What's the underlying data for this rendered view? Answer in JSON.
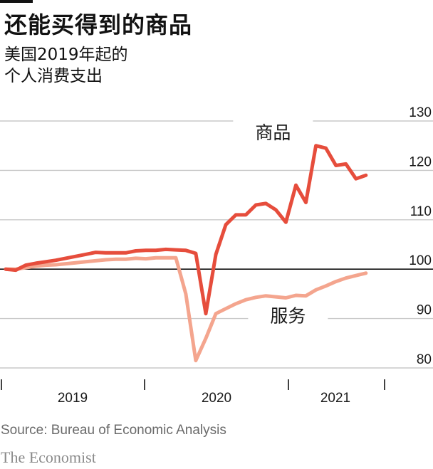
{
  "title": "还能买得到的商品",
  "subtitle_line1": "美国2019年起的",
  "subtitle_line2": "个人消费支出",
  "source": "Source: Bureau of Economic Analysis",
  "brand": "The Economist",
  "chart_data": {
    "type": "line",
    "ylim": [
      80,
      130
    ],
    "yticks": [
      130,
      120,
      110,
      100,
      90,
      80
    ],
    "baseline": 100,
    "x_start": "2019-01",
    "x_end": "2021-10",
    "year_labels": [
      "2019",
      "2020",
      "2021"
    ],
    "series": [
      {
        "name": "商品",
        "color": "#e64d3c",
        "values": [
          100,
          99.8,
          100.8,
          101.2,
          101.5,
          101.8,
          102.2,
          102.6,
          103.0,
          103.4,
          103.3,
          103.3,
          103.3,
          103.7,
          103.8,
          103.8,
          104.0,
          103.9,
          103.8,
          103.2,
          91.0,
          103.0,
          109.0,
          111.0,
          111.0,
          113.0,
          113.3,
          112.0,
          109.5,
          117.0,
          113.5,
          125.0,
          124.5,
          121.0,
          121.3,
          118.3,
          119.0
        ]
      },
      {
        "name": "服务",
        "color": "#f4a58e",
        "values": [
          100,
          100.0,
          100.3,
          100.6,
          100.8,
          100.9,
          101.1,
          101.3,
          101.5,
          101.7,
          101.9,
          102.0,
          102.0,
          102.2,
          102.1,
          102.3,
          102.3,
          102.3,
          95.0,
          81.5,
          86.0,
          91.0,
          92.0,
          93.0,
          93.8,
          94.3,
          94.6,
          94.4,
          94.2,
          94.7,
          94.6,
          95.8,
          96.6,
          97.5,
          98.2,
          98.7,
          99.2
        ]
      }
    ]
  }
}
